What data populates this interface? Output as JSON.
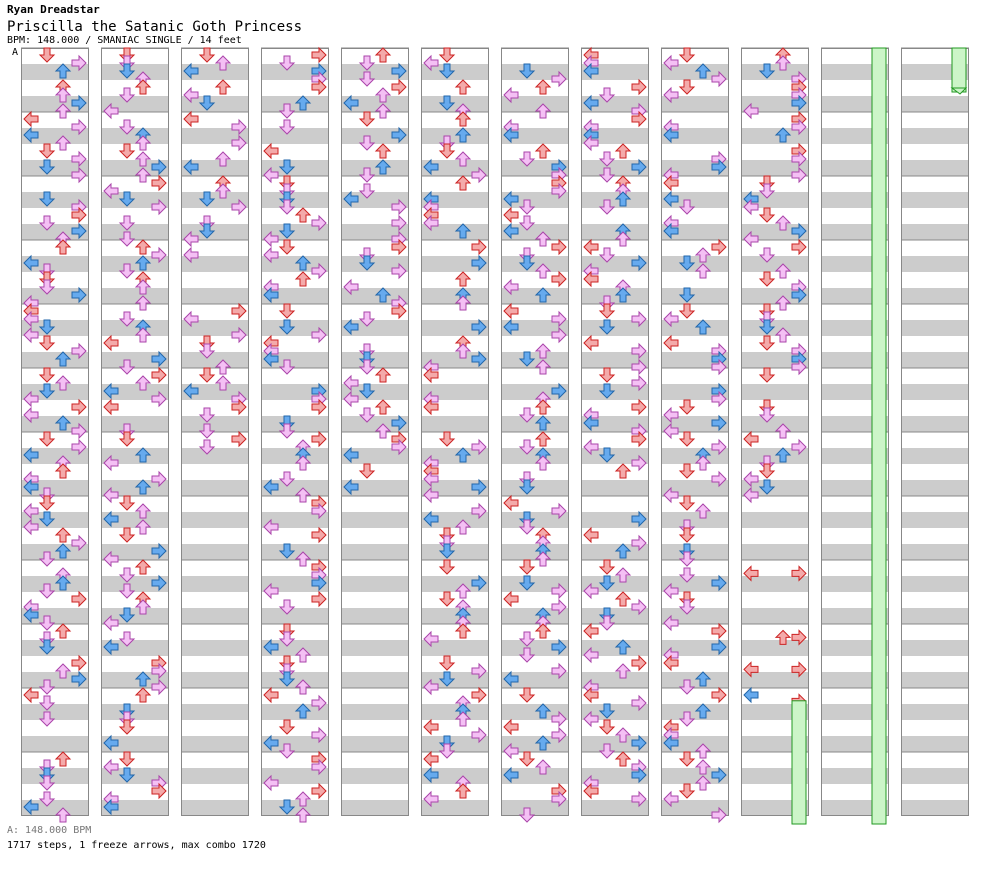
{
  "header": {
    "artist": "Ryan Dreadstar",
    "title": "Priscilla the Satanic Goth Princess",
    "meta": "BPM: 148.000 / SMANIAC SINGLE / 14 feet",
    "bpm_marker": "A"
  },
  "footer": {
    "bpm": "A: 148.000 BPM",
    "stats": "1717 steps, 1 freeze arrows, max combo 1720"
  },
  "colors": {
    "stripe": "#cccccc",
    "border": "#888888",
    "blue_fill": "#66aaee",
    "blue_stroke": "#2266aa",
    "pink_fill": "#f4c0f4",
    "pink_stroke": "#aa44aa",
    "red_fill": "#f4aaaa",
    "red_stroke": "#cc2222",
    "freeze_fill": "#ccf5c8",
    "freeze_stroke": "#229922"
  },
  "chart_data": {
    "type": "stepchart",
    "bpm": 148.0,
    "difficulty": "SMANIAC",
    "style": "SINGLE",
    "feet": 14,
    "steps": 1717,
    "freeze_arrows": 1,
    "max_combo": 1720,
    "lanes": [
      "left",
      "down",
      "up",
      "right"
    ],
    "column_count": 12,
    "measures_per_column": 12
  }
}
